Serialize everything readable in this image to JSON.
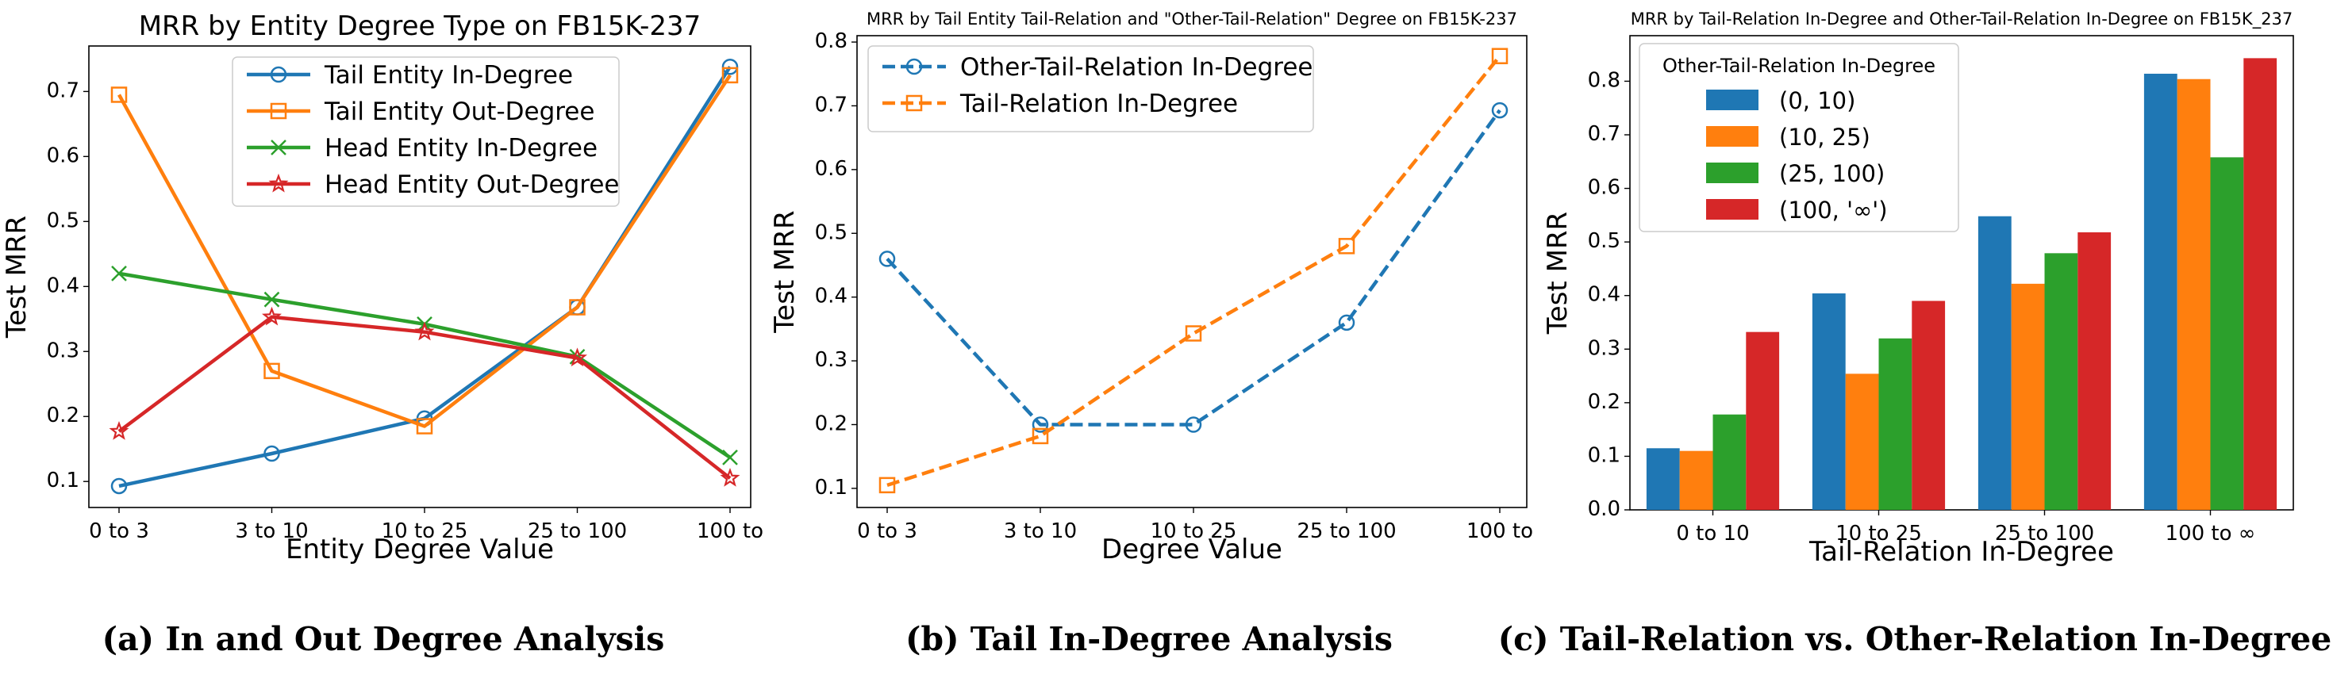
{
  "captions": {
    "a": "(a) In and Out Degree Analysis",
    "b": "(b) Tail In-Degree Analysis",
    "c": "(c) Tail-Relation vs. Other-Relation In-Degree"
  },
  "chart_data": [
    {
      "type": "line",
      "title": "MRR by Entity Degree Type on FB15K-237",
      "xlabel": "Entity Degree Value",
      "ylabel": "Test MRR",
      "categories": [
        "0 to 3",
        "3 to 10",
        "10 to 25",
        "25 to 100",
        "100 to"
      ],
      "ylim": [
        0.06,
        0.77
      ],
      "yticks": [
        0.1,
        0.2,
        0.3,
        0.4,
        0.5,
        0.6,
        0.7
      ],
      "grid": false,
      "legend": "top-center",
      "series": [
        {
          "name": "Tail Entity In-Degree",
          "color": "#1f77b4",
          "marker": "circle",
          "dash": "solid",
          "values": [
            0.093,
            0.143,
            0.197,
            0.368,
            0.738
          ]
        },
        {
          "name": "Tail Entity Out-Degree",
          "color": "#ff7f0e",
          "marker": "square",
          "dash": "solid",
          "values": [
            0.695,
            0.27,
            0.185,
            0.368,
            0.725
          ]
        },
        {
          "name": "Head Entity In-Degree",
          "color": "#2ca02c",
          "marker": "x",
          "dash": "solid",
          "values": [
            0.42,
            0.38,
            0.342,
            0.292,
            0.137
          ]
        },
        {
          "name": "Head Entity Out-Degree",
          "color": "#d62728",
          "marker": "star",
          "dash": "solid",
          "values": [
            0.177,
            0.353,
            0.33,
            0.29,
            0.105
          ]
        }
      ]
    },
    {
      "type": "line",
      "title": "MRR by Tail Entity Tail-Relation and \"Other-Tail-Relation\" Degree on FB15K-237",
      "xlabel": "Degree Value",
      "ylabel": "Test MRR",
      "categories": [
        "0 to 3",
        "3 to 10",
        "10 to 25",
        "25 to 100",
        "100 to"
      ],
      "ylim": [
        0.07,
        0.81
      ],
      "yticks": [
        0.1,
        0.2,
        0.3,
        0.4,
        0.5,
        0.6,
        0.7,
        0.8
      ],
      "grid": false,
      "legend": "top-left",
      "series": [
        {
          "name": "Other-Tail-Relation In-Degree",
          "color": "#1f77b4",
          "marker": "circle",
          "dash": "dashed",
          "values": [
            0.46,
            0.2,
            0.2,
            0.36,
            0.693
          ]
        },
        {
          "name": "Tail-Relation In-Degree",
          "color": "#ff7f0e",
          "marker": "square",
          "dash": "dashed",
          "values": [
            0.105,
            0.182,
            0.343,
            0.48,
            0.778
          ]
        }
      ]
    },
    {
      "type": "bar",
      "title": "MRR by Tail-Relation In-Degree and Other-Tail-Relation In-Degree on FB15K_237",
      "xlabel": "Tail-Relation In-Degree",
      "ylabel": "Test MRR",
      "categories": [
        "0 to 10",
        "10 to 25",
        "25 to 100",
        "100 to ∞"
      ],
      "ylim": [
        0,
        0.885
      ],
      "yticks": [
        0.0,
        0.1,
        0.2,
        0.3,
        0.4,
        0.5,
        0.6,
        0.7,
        0.8
      ],
      "grid": false,
      "legend": "top-left",
      "legend_title": "Other-Tail-Relation In-Degree",
      "series": [
        {
          "name": "(0, 10)",
          "color": "#1f77b4",
          "values": [
            0.115,
            0.404,
            0.548,
            0.814
          ]
        },
        {
          "name": "(10, 25)",
          "color": "#ff7f0e",
          "values": [
            0.11,
            0.254,
            0.422,
            0.804
          ]
        },
        {
          "name": "(25, 100)",
          "color": "#2ca02c",
          "values": [
            0.178,
            0.32,
            0.479,
            0.658
          ]
        },
        {
          "name": "(100, '∞')",
          "color": "#d62728",
          "values": [
            0.332,
            0.39,
            0.518,
            0.843
          ]
        }
      ]
    }
  ]
}
